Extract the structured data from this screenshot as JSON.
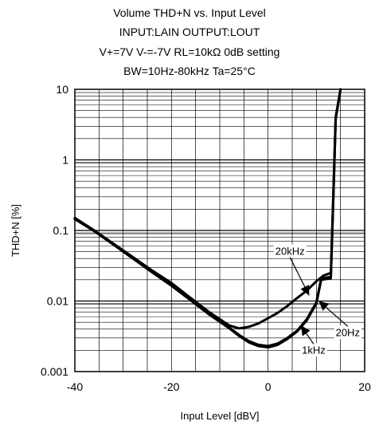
{
  "chart_data": {
    "type": "line",
    "title_lines": [
      "Volume THD+N vs. Input Level",
      "INPUT:LAIN OUTPUT:LOUT",
      "V+=7V V-=-7V  RL=10kΩ 0dB setting",
      "BW=10Hz-80kHz Ta=25°C"
    ],
    "xlabel": "Input Level [dBV]",
    "ylabel": "THD+N [%]",
    "xlim": [
      -40,
      20
    ],
    "ylim": [
      0.001,
      10
    ],
    "yscale": "log",
    "x_ticks": [
      -40,
      -20,
      0,
      20
    ],
    "x_tick_labels": [
      "-40",
      "-20",
      "0",
      "20"
    ],
    "y_ticks": [
      0.001,
      0.01,
      0.1,
      1,
      10
    ],
    "y_tick_labels": [
      "0.001",
      "0.01",
      "0.1",
      "1",
      "10"
    ],
    "grid": true,
    "series": [
      {
        "name": "20kHz",
        "x": [
          -40,
          -36,
          -32,
          -28,
          -24,
          -20,
          -16,
          -12,
          -8,
          -6,
          -4,
          -2,
          0,
          2,
          4,
          6,
          8,
          10,
          11.5,
          13,
          13.5,
          14,
          15
        ],
        "y": [
          0.15,
          0.1,
          0.065,
          0.042,
          0.027,
          0.018,
          0.011,
          0.0068,
          0.0045,
          0.0041,
          0.0043,
          0.0048,
          0.0057,
          0.0068,
          0.0085,
          0.011,
          0.014,
          0.019,
          0.023,
          0.025,
          0.3,
          4.0,
          10.0
        ]
      },
      {
        "name": "1kHz",
        "x": [
          -40,
          -36,
          -32,
          -28,
          -24,
          -20,
          -16,
          -12,
          -8,
          -6,
          -4,
          -2,
          0,
          2,
          4,
          6,
          8,
          10,
          11,
          13,
          13.5,
          14,
          15
        ],
        "y": [
          0.15,
          0.1,
          0.064,
          0.041,
          0.026,
          0.017,
          0.0105,
          0.0065,
          0.0042,
          0.0033,
          0.0027,
          0.0024,
          0.0023,
          0.0025,
          0.003,
          0.0038,
          0.0055,
          0.0095,
          0.021,
          0.022,
          0.3,
          4.0,
          10.0
        ]
      },
      {
        "name": "20Hz",
        "x": [
          -40,
          -36,
          -32,
          -28,
          -24,
          -20,
          -16,
          -12,
          -8,
          -6,
          -4,
          -2,
          0,
          2,
          4,
          6,
          8,
          10,
          11,
          13,
          13.5,
          14,
          15
        ],
        "y": [
          0.145,
          0.098,
          0.063,
          0.04,
          0.0255,
          0.0165,
          0.0102,
          0.0063,
          0.0041,
          0.0032,
          0.0026,
          0.0023,
          0.0022,
          0.0024,
          0.0029,
          0.0037,
          0.0053,
          0.0092,
          0.02,
          0.021,
          0.28,
          3.8,
          10.0
        ]
      }
    ],
    "annotations": [
      {
        "text": "20kHz",
        "x": 1.5,
        "y": 0.045,
        "arrow_to": [
          8.5,
          0.012
        ]
      },
      {
        "text": "20Hz",
        "x": 14,
        "y": 0.0032,
        "arrow_to": [
          10.5,
          0.01
        ]
      },
      {
        "text": "1kHz",
        "x": 7,
        "y": 0.0018,
        "arrow_to": [
          6.8,
          0.0045
        ]
      }
    ]
  }
}
